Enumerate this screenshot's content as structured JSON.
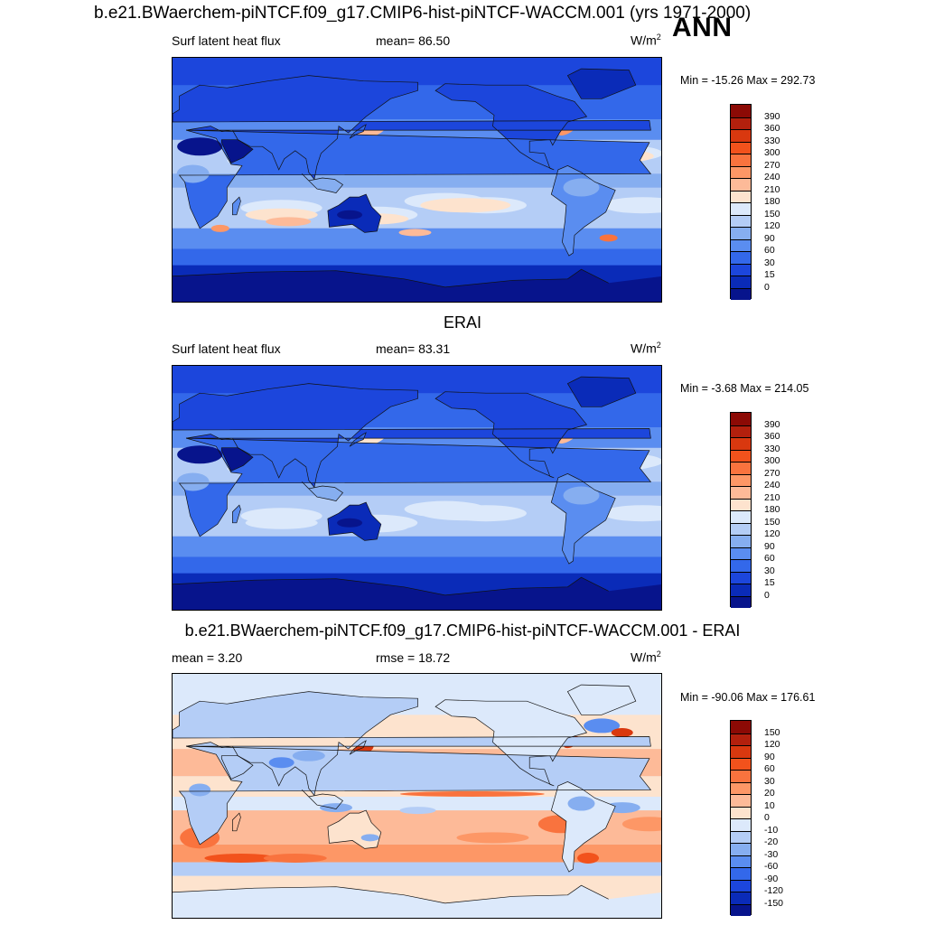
{
  "figure": {
    "main_title": "b.e21.BWaerchem-piNTCF.f09_g17.CMIP6-hist-piNTCF-WACCM.001 (yrs 1971-2000)",
    "season": "ANN"
  },
  "panels": [
    {
      "title": "",
      "left_label": "Surf latent heat flux",
      "center_label": "mean=  86.50",
      "units": "W/m",
      "units_sup": "2",
      "minmax": "Min = -15.26 Max = 292.73",
      "scale": "abs"
    },
    {
      "title": "ERAI",
      "left_label": "Surf latent heat flux",
      "center_label": "mean=  83.31",
      "units": "W/m",
      "units_sup": "2",
      "minmax": "Min =  -3.68 Max = 214.05",
      "scale": "abs"
    },
    {
      "title": "b.e21.BWaerchem-piNTCF.f09_g17.CMIP6-hist-piNTCF-WACCM.001 - ERAI",
      "left_label": "mean =   3.20",
      "center_label": "rmse =  18.72",
      "units": "W/m",
      "units_sup": "2",
      "minmax": "Min = -90.06 Max = 176.61",
      "scale": "diff"
    }
  ],
  "colorbars": {
    "abs": {
      "labels": [
        "390",
        "360",
        "330",
        "300",
        "270",
        "240",
        "210",
        "180",
        "150",
        "120",
        "90",
        "60",
        "30",
        "15",
        "0"
      ],
      "colors": [
        "#8c0a05",
        "#b3200d",
        "#d9380f",
        "#f2521c",
        "#f9733e",
        "#fd9766",
        "#fdba98",
        "#fde3ce",
        "#dce9fb",
        "#b4cdf6",
        "#86aef0",
        "#5a8df0",
        "#3368ea",
        "#1c46dc",
        "#0a2bb8",
        "#07148c"
      ]
    },
    "diff": {
      "labels": [
        "150",
        "120",
        "90",
        "60",
        "30",
        "20",
        "10",
        "0",
        "-10",
        "-20",
        "-30",
        "-60",
        "-90",
        "-120",
        "-150"
      ],
      "colors": [
        "#8c0a05",
        "#b3200d",
        "#d9380f",
        "#f2521c",
        "#f9733e",
        "#fd9766",
        "#fdba98",
        "#fde3ce",
        "#dce9fb",
        "#b4cdf6",
        "#86aef0",
        "#5a8df0",
        "#3368ea",
        "#1c46dc",
        "#0a2bb8",
        "#07148c"
      ]
    }
  },
  "chart_data": [
    {
      "type": "heatmap",
      "title": "",
      "variable": "Surf latent heat flux",
      "units": "W/m2",
      "mean": 86.5,
      "min": -15.26,
      "max": 292.73,
      "colorbar_levels": [
        0,
        15,
        30,
        60,
        90,
        120,
        150,
        180,
        210,
        240,
        270,
        300,
        330,
        360,
        390
      ]
    },
    {
      "type": "heatmap",
      "title": "ERAI",
      "variable": "Surf latent heat flux",
      "units": "W/m2",
      "mean": 83.31,
      "min": -3.68,
      "max": 214.05,
      "colorbar_levels": [
        0,
        15,
        30,
        60,
        90,
        120,
        150,
        180,
        210,
        240,
        270,
        300,
        330,
        360,
        390
      ]
    },
    {
      "type": "heatmap",
      "title": "b.e21.BWaerchem-piNTCF.f09_g17.CMIP6-hist-piNTCF-WACCM.001 - ERAI",
      "units": "W/m2",
      "mean": 3.2,
      "rmse": 18.72,
      "min": -90.06,
      "max": 176.61,
      "colorbar_levels": [
        -150,
        -120,
        -90,
        -60,
        -30,
        -20,
        -10,
        0,
        10,
        20,
        30,
        60,
        90,
        120,
        150
      ]
    }
  ]
}
